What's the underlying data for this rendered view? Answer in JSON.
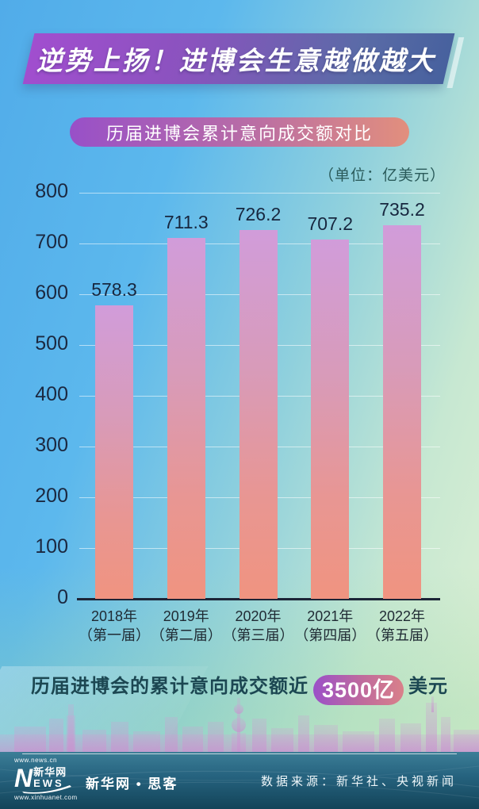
{
  "banner": {
    "title": "逆势上扬！进博会生意越做越大"
  },
  "subtitle_pill": "历届进博会累计意向成交额对比",
  "unit_label": "（单位：亿美元）",
  "chart_data": {
    "type": "bar",
    "title": "历届进博会累计意向成交额对比",
    "unit": "亿美元",
    "categories": [
      {
        "year": "2018年",
        "session": "（第一届）"
      },
      {
        "year": "2019年",
        "session": "（第二届）"
      },
      {
        "year": "2020年",
        "session": "（第三届）"
      },
      {
        "year": "2021年",
        "session": "（第四届）"
      },
      {
        "year": "2022年",
        "session": "（第五届）"
      }
    ],
    "values": [
      578.3,
      711.3,
      726.2,
      707.2,
      735.2
    ],
    "ylim": [
      0,
      800
    ],
    "yticks": [
      0,
      100,
      200,
      300,
      400,
      500,
      600,
      700,
      800
    ],
    "grid": true,
    "legend": null
  },
  "note": {
    "prefix": "历届进博会的累计意向成交额近",
    "highlight": "3500亿",
    "suffix": "美元"
  },
  "footer": {
    "logo": {
      "top_url": "www.news.cn",
      "n": "N",
      "cn": "新华网",
      "ews": "EWS",
      "bottom_url": "www.xinhuanet.com"
    },
    "brand": "新华网 • 思客",
    "source": "数据来源：新华社、央视新闻"
  },
  "colors": {
    "bar_top": "#d19cda",
    "bar_bottom": "#f09480",
    "banner_left": "#a14ecf",
    "banner_right": "#47619e",
    "pill_left": "#9850c8",
    "pill_right": "#e28f7d",
    "highlight_left": "#9b50c8",
    "highlight_right": "#d9808a",
    "bg_top_left": "#51ace9",
    "bg_bottom_right": "#e1f1d4",
    "footer_bg": "#1c5470",
    "axis_text": "#1b2840"
  }
}
